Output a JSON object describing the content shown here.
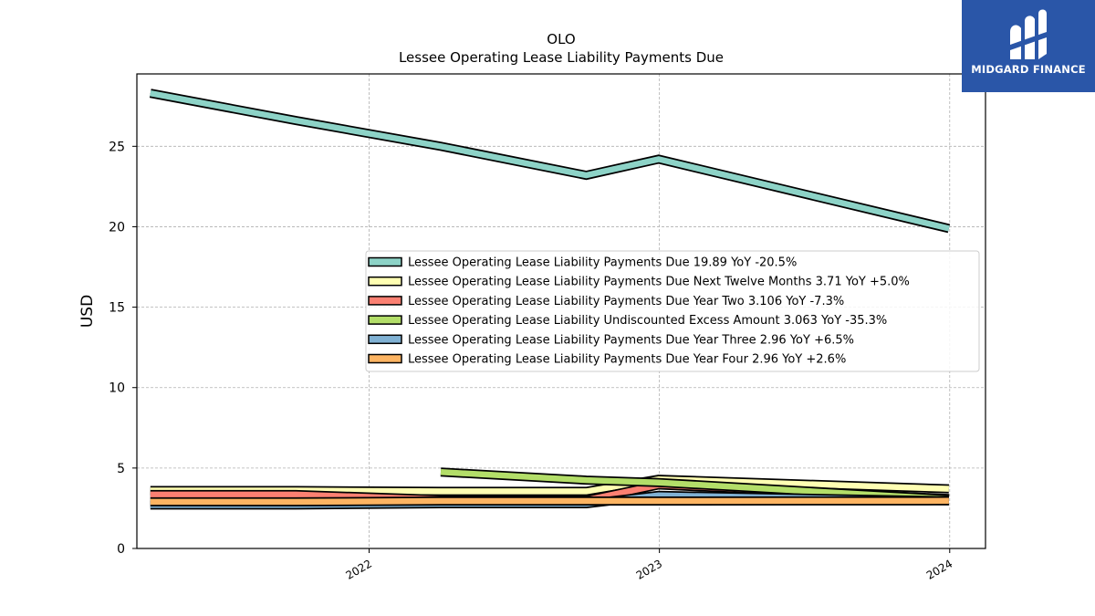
{
  "brand": {
    "name": "MIDGARD FINANCE",
    "bg": "#2a56a8"
  },
  "chart_data": {
    "type": "line",
    "title": "OLO",
    "subtitle": "Lessee Operating Lease Liability Payments Due",
    "xlabel": "",
    "ylabel": "USD",
    "xlim": [
      "2021-03-15",
      "2024-02-15"
    ],
    "ylim": [
      0,
      29.5
    ],
    "x_ticks": [
      "2022",
      "2023",
      "2024"
    ],
    "y_ticks": [
      0,
      5,
      10,
      15,
      20,
      25
    ],
    "grid": true,
    "legend_position": "center-right",
    "series": [
      {
        "name": "Lessee Operating Lease Liability Payments Due",
        "legend": "Lessee Operating Lease Liability Payments Due  19.89 YoY -20.5%",
        "color": "#8dd3c7",
        "points": [
          [
            "2021-04-01",
            28.3
          ],
          [
            "2021-10-01",
            26.6
          ],
          [
            "2022-04-01",
            25.0
          ],
          [
            "2022-10-01",
            23.2
          ],
          [
            "2022-12-31",
            24.2
          ],
          [
            "2023-12-31",
            19.89
          ]
        ]
      },
      {
        "name": "Lessee Operating Lease Liability Payments Due Next Twelve Months",
        "legend": "Lessee Operating Lease Liability Payments Due Next Twelve Months  3.71 YoY +5.0%",
        "color": "#ffffb3",
        "points": [
          [
            "2021-04-01",
            3.6
          ],
          [
            "2021-10-01",
            3.6
          ],
          [
            "2022-04-01",
            3.55
          ],
          [
            "2022-10-01",
            3.55
          ],
          [
            "2022-12-31",
            4.3
          ],
          [
            "2023-12-31",
            3.71
          ]
        ]
      },
      {
        "name": "Lessee Operating Lease Liability Payments Due Year Two",
        "legend": "Lessee Operating Lease Liability Payments Due Year Two  3.106 YoY -7.3%",
        "color": "#fb8072",
        "points": [
          [
            "2021-04-01",
            3.35
          ],
          [
            "2021-10-01",
            3.35
          ],
          [
            "2022-04-01",
            3.05
          ],
          [
            "2022-10-01",
            3.0
          ],
          [
            "2022-12-31",
            3.95
          ],
          [
            "2023-12-31",
            3.106
          ]
        ]
      },
      {
        "name": "Lessee Operating Lease Liability Undiscounted Excess Amount",
        "legend": "Lessee Operating Lease Liability Undiscounted Excess Amount  3.063 YoY -35.3%",
        "color": "#b3de69",
        "points": [
          [
            "2022-04-01",
            4.75
          ],
          [
            "2022-10-01",
            4.25
          ],
          [
            "2022-12-31",
            4.1
          ],
          [
            "2023-12-31",
            3.063
          ]
        ]
      },
      {
        "name": "Lessee Operating Lease Liability Payments Due Year Three",
        "legend": "Lessee Operating Lease Liability Payments Due Year Three  2.96 YoY +6.5%",
        "color": "#80b1d3",
        "points": [
          [
            "2021-04-01",
            2.7
          ],
          [
            "2021-10-01",
            2.7
          ],
          [
            "2022-04-01",
            2.78
          ],
          [
            "2022-10-01",
            2.78
          ],
          [
            "2022-12-31",
            3.3
          ],
          [
            "2023-12-31",
            2.96
          ]
        ]
      },
      {
        "name": "Lessee Operating Lease Liability Payments Due Year Four",
        "legend": "Lessee Operating Lease Liability Payments Due Year Four  2.96 YoY +2.6%",
        "color": "#fdb462",
        "points": [
          [
            "2021-04-01",
            2.9
          ],
          [
            "2021-10-01",
            2.9
          ],
          [
            "2022-04-01",
            2.95
          ],
          [
            "2022-10-01",
            2.95
          ],
          [
            "2022-12-31",
            2.95
          ],
          [
            "2023-12-31",
            2.96
          ]
        ]
      }
    ]
  }
}
